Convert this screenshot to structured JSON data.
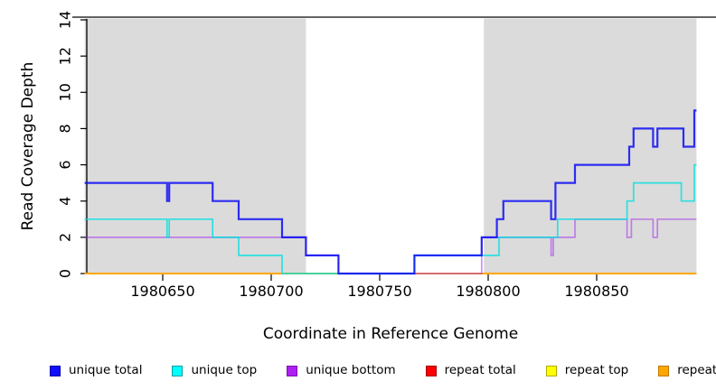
{
  "figure": {
    "ylabel": "Read Coverage Depth",
    "xlabel": "Coordinate in Reference Genome"
  },
  "chart_data": {
    "type": "line",
    "line_style": "step",
    "title": "",
    "xlabel": "Coordinate in Reference Genome",
    "ylabel": "Read Coverage Depth",
    "x_range": [
      1980614,
      1980896
    ],
    "y_range": [
      0,
      14
    ],
    "x_ticks": [
      "1980650",
      "1980700",
      "1980750",
      "1980800",
      "1980850"
    ],
    "x_tick_values": [
      1980650,
      1980700,
      1980750,
      1980800,
      1980850
    ],
    "y_ticks": [
      "0",
      "2",
      "4",
      "6",
      "8",
      "10",
      "12",
      "14"
    ],
    "y_tick_values": [
      0,
      2,
      4,
      6,
      8,
      10,
      12,
      14
    ],
    "grid": false,
    "legend_position": "bottom",
    "background_shaded_regions": [
      {
        "x_start": 1980614,
        "x_end": 1980716,
        "color": "#DBDBDB"
      },
      {
        "x_start": 1980798,
        "x_end": 1980896,
        "color": "#DBDBDB"
      }
    ],
    "series": [
      {
        "name": "unique total",
        "color": "#0D0DF5",
        "alpha": 0.85,
        "width": 2.2,
        "z": 6,
        "steps": [
          [
            1980614,
            5
          ],
          [
            1980652,
            4
          ],
          [
            1980653,
            5
          ],
          [
            1980673,
            4
          ],
          [
            1980685,
            3
          ],
          [
            1980705,
            2
          ],
          [
            1980716,
            1
          ],
          [
            1980731,
            0
          ],
          [
            1980766,
            1
          ],
          [
            1980797,
            2
          ],
          [
            1980804,
            3
          ],
          [
            1980807,
            4
          ],
          [
            1980829,
            3
          ],
          [
            1980831,
            5
          ],
          [
            1980840,
            6
          ],
          [
            1980865,
            7
          ],
          [
            1980867,
            8
          ],
          [
            1980876,
            7
          ],
          [
            1980878,
            8
          ],
          [
            1980890,
            7
          ],
          [
            1980895,
            9
          ],
          [
            1980896,
            9
          ]
        ]
      },
      {
        "name": "unique top",
        "color": "#00E0E0",
        "alpha": 0.8,
        "width": 1.7,
        "z": 5,
        "steps": [
          [
            1980614,
            3
          ],
          [
            1980652,
            2
          ],
          [
            1980653,
            3
          ],
          [
            1980673,
            2
          ],
          [
            1980685,
            1
          ],
          [
            1980705,
            0
          ],
          [
            1980766,
            1
          ],
          [
            1980805,
            2
          ],
          [
            1980832,
            3
          ],
          [
            1980864,
            4
          ],
          [
            1980867,
            5
          ],
          [
            1980889,
            4
          ],
          [
            1980895,
            6
          ],
          [
            1980896,
            6
          ]
        ]
      },
      {
        "name": "unique bottom",
        "color": "#A020F0",
        "alpha": 0.5,
        "width": 1.7,
        "z": 4,
        "steps": [
          [
            1980614,
            2
          ],
          [
            1980716,
            1
          ],
          [
            1980731,
            0
          ],
          [
            1980797,
            2
          ],
          [
            1980829,
            1
          ],
          [
            1980830,
            2
          ],
          [
            1980840,
            3
          ],
          [
            1980864,
            2
          ],
          [
            1980866,
            3
          ],
          [
            1980876,
            2
          ],
          [
            1980878,
            3
          ],
          [
            1980896,
            3
          ]
        ]
      },
      {
        "name": "repeat total",
        "color": "#E00000",
        "alpha": 0.6,
        "width": 1.5,
        "z": 1,
        "steps": [
          [
            1980614,
            0
          ],
          [
            1980896,
            0
          ]
        ]
      },
      {
        "name": "repeat top",
        "color": "#FFFF00",
        "alpha": 0.9,
        "width": 1.5,
        "z": 2,
        "steps": [
          [
            1980614,
            0
          ],
          [
            1980896,
            0
          ]
        ]
      },
      {
        "name": "repeat bottom",
        "color": "#FFA500",
        "alpha": 0.97,
        "width": 2.0,
        "z": 3,
        "steps": [
          [
            1980614,
            0
          ],
          [
            1980896,
            0
          ]
        ]
      }
    ]
  },
  "legend": {
    "items": [
      {
        "label": "unique total",
        "fill": "#0F0FFF",
        "border": "#0000A0"
      },
      {
        "label": "unique top",
        "fill": "#00FFFF",
        "border": "#009E9E"
      },
      {
        "label": "unique bottom",
        "fill": "#AE1FF2",
        "border": "#7C10B4"
      },
      {
        "label": "repeat total",
        "fill": "#FF0000",
        "border": "#A00000"
      },
      {
        "label": "repeat top",
        "fill": "#FFFF00",
        "border": "#ADAD00"
      },
      {
        "label": "repeat bottom",
        "fill": "#FFA500",
        "border": "#BF7800"
      }
    ]
  }
}
